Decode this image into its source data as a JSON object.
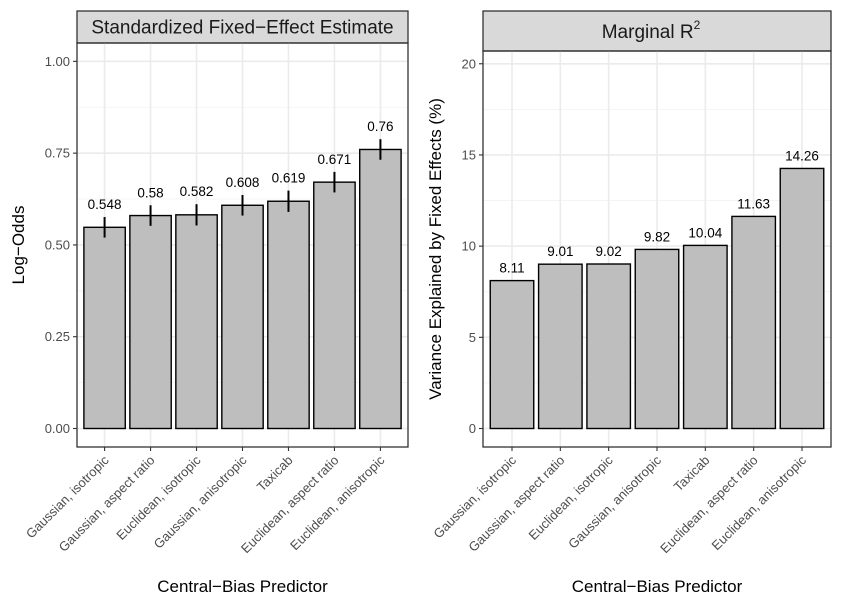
{
  "chart_data": [
    {
      "type": "bar",
      "title": "Standardized Fixed−Effect Estimate",
      "xlabel": "Central−Bias Predictor",
      "ylabel": "Log−Odds",
      "ylim": [
        0,
        1.05
      ],
      "yticks": [
        0,
        0.25,
        0.5,
        0.75,
        1.0
      ],
      "ytick_labels": [
        "0.00",
        "0.25",
        "0.50",
        "0.75",
        "1.00"
      ],
      "grid": true,
      "categories": [
        "Gaussian, isotropic",
        "Gaussian, aspect ratio",
        "Euclidean, isotropic",
        "Gaussian, anisotropic",
        "Taxicab",
        "Euclidean, aspect ratio",
        "Euclidean, anisotropic"
      ],
      "values": [
        0.548,
        0.58,
        0.582,
        0.608,
        0.619,
        0.671,
        0.76
      ],
      "value_labels": [
        "0.548",
        "0.58",
        "0.582",
        "0.608",
        "0.619",
        "0.671",
        "0.76"
      ],
      "error_low": [
        0.52,
        0.552,
        0.553,
        0.58,
        0.59,
        0.643,
        0.732
      ],
      "error_high": [
        0.576,
        0.608,
        0.611,
        0.636,
        0.648,
        0.699,
        0.788
      ]
    },
    {
      "type": "bar",
      "title": "Marginal R",
      "title_superscript": "2",
      "xlabel": "Central−Bias Predictor",
      "ylabel": "Variance Explained by Fixed Effects (%)",
      "ylim": [
        0,
        20.7
      ],
      "yticks": [
        0,
        5,
        10,
        15,
        20
      ],
      "ytick_labels": [
        "0",
        "5",
        "10",
        "15",
        "20"
      ],
      "grid": true,
      "categories": [
        "Gaussian, isotropic",
        "Gaussian, aspect ratio",
        "Euclidean, isotropic",
        "Gaussian, anisotropic",
        "Taxicab",
        "Euclidean, aspect ratio",
        "Euclidean, anisotropic"
      ],
      "values": [
        8.11,
        9.01,
        9.02,
        9.82,
        10.04,
        11.63,
        14.26
      ],
      "value_labels": [
        "8.11",
        "9.01",
        "9.02",
        "9.82",
        "10.04",
        "11.63",
        "14.26"
      ]
    }
  ]
}
